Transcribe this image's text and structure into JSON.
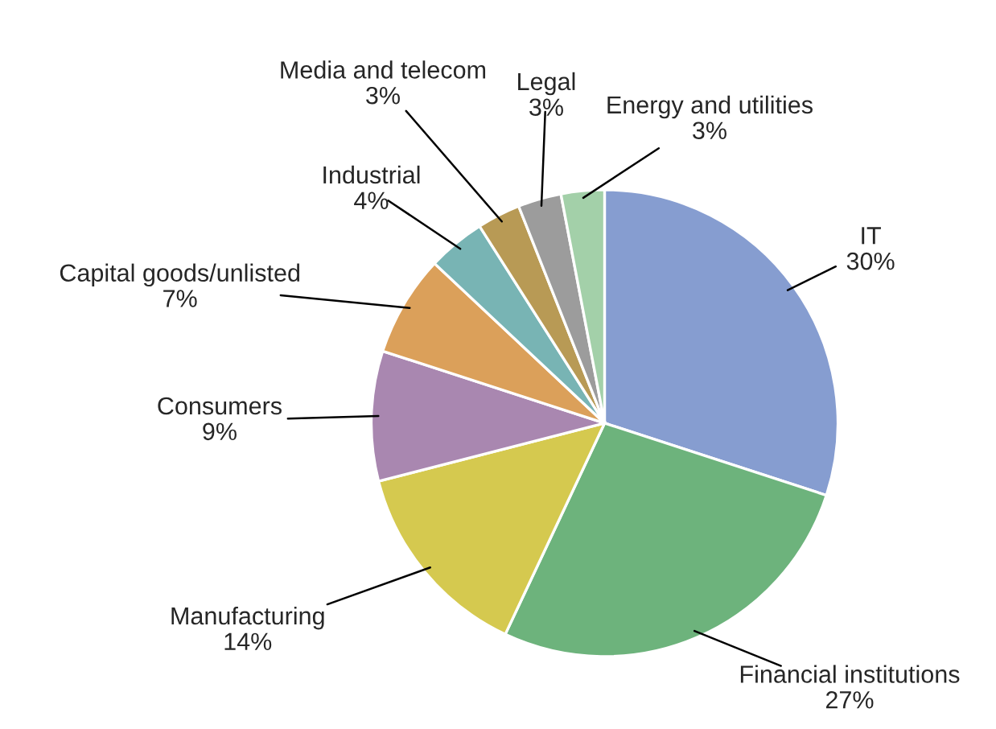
{
  "chart_data": {
    "type": "pie",
    "categories": [
      "IT",
      "Financial institutions",
      "Manufacturing",
      "Consumers",
      "Capital goods/unlisted",
      "Industrial",
      "Media and telecom",
      "Legal",
      "Energy and utilities"
    ],
    "values": [
      30,
      27,
      14,
      9,
      7,
      4,
      3,
      3,
      3
    ],
    "value_labels": [
      "30%",
      "27%",
      "14%",
      "9%",
      "7%",
      "4%",
      "3%",
      "3%",
      "3%"
    ],
    "colors": [
      "#869dd0",
      "#6db37c",
      "#d5c94f",
      "#a987b0",
      "#dba05a",
      "#78b4b4",
      "#b89a55",
      "#9c9c9c",
      "#a3d0a9"
    ],
    "legend": false
  }
}
